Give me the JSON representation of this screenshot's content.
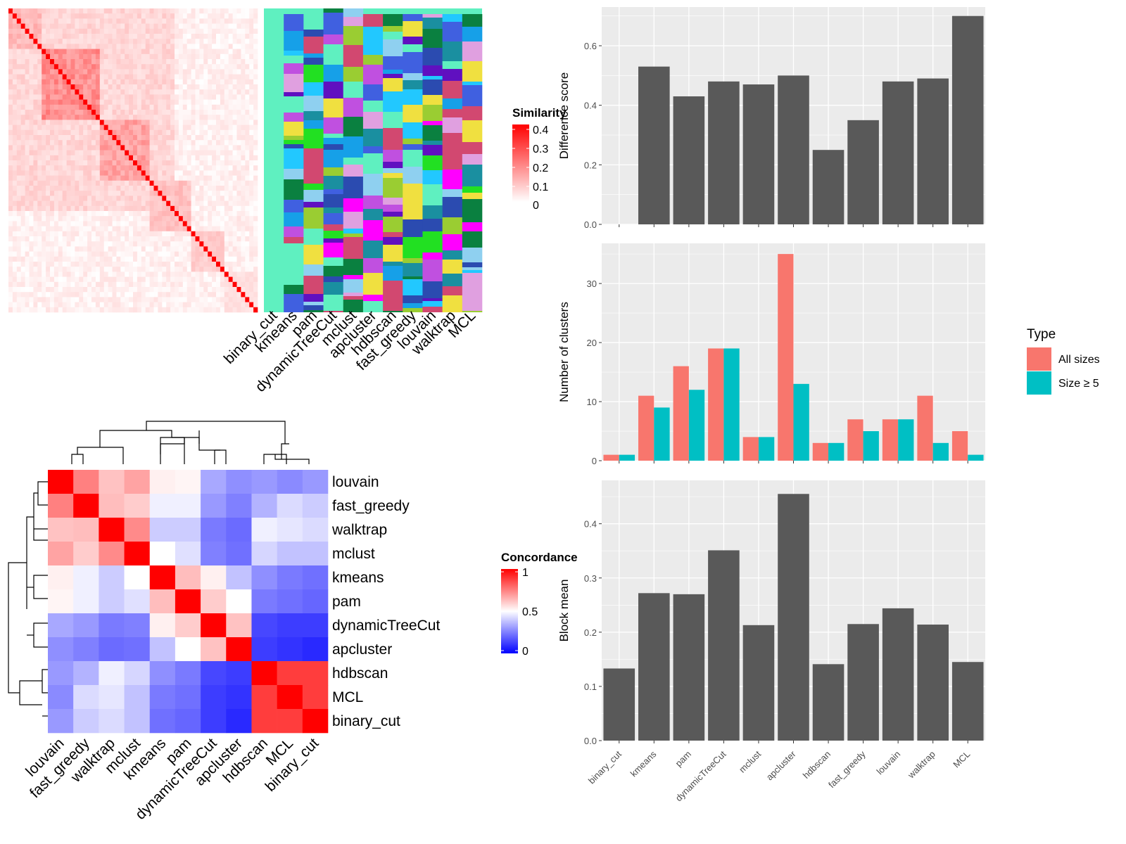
{
  "colors": {
    "panel_bg": "#ebebeb",
    "grid": "#ffffff",
    "bar": "#595959",
    "all_sizes": "#f8766d",
    "size_ge_5": "#00bfc4",
    "similarity_high": "#ff0000",
    "similarity_low": "#ffffff",
    "concordance_high": "#ff0000",
    "concordance_mid": "#ffffff",
    "concordance_low": "#0000ff"
  },
  "similarity_heatmap": {
    "legend_title": "Similarity",
    "legend_ticks": [
      "0.4",
      "0.3",
      "0.2",
      "0.1",
      "0"
    ],
    "method_labels": [
      "binary_cut",
      "kmeans",
      "pam",
      "dynamicTreeCut",
      "mclust",
      "apcluster",
      "hdbscan",
      "fast_greedy",
      "louvain",
      "walktrap",
      "MCL"
    ]
  },
  "concordance_heatmap": {
    "legend_title": "Concordance",
    "legend_ticks": [
      "1",
      "0.5",
      "0"
    ],
    "row_labels": [
      "louvain",
      "fast_greedy",
      "walktrap",
      "mclust",
      "kmeans",
      "pam",
      "dynamicTreeCut",
      "apcluster",
      "hdbscan",
      "MCL",
      "binary_cut"
    ],
    "col_labels": [
      "louvain",
      "fast_greedy",
      "walktrap",
      "mclust",
      "kmeans",
      "pam",
      "dynamicTreeCut",
      "apcluster",
      "hdbscan",
      "MCL",
      "binary_cut"
    ],
    "values": [
      [
        1.0,
        0.75,
        0.62,
        0.68,
        0.53,
        0.52,
        0.33,
        0.28,
        0.3,
        0.27,
        0.3
      ],
      [
        0.75,
        1.0,
        0.63,
        0.6,
        0.47,
        0.47,
        0.3,
        0.25,
        0.35,
        0.43,
        0.4
      ],
      [
        0.62,
        0.63,
        1.0,
        0.73,
        0.4,
        0.4,
        0.24,
        0.21,
        0.47,
        0.45,
        0.43
      ],
      [
        0.68,
        0.6,
        0.73,
        1.0,
        0.5,
        0.44,
        0.25,
        0.22,
        0.42,
        0.38,
        0.38
      ],
      [
        0.53,
        0.47,
        0.4,
        0.5,
        1.0,
        0.63,
        0.53,
        0.38,
        0.28,
        0.24,
        0.22
      ],
      [
        0.52,
        0.47,
        0.4,
        0.44,
        0.63,
        1.0,
        0.6,
        0.5,
        0.24,
        0.22,
        0.2
      ],
      [
        0.33,
        0.3,
        0.24,
        0.25,
        0.53,
        0.6,
        1.0,
        0.62,
        0.14,
        0.12,
        0.12
      ],
      [
        0.28,
        0.25,
        0.21,
        0.22,
        0.38,
        0.5,
        0.62,
        1.0,
        0.12,
        0.1,
        0.08
      ],
      [
        0.3,
        0.35,
        0.47,
        0.42,
        0.28,
        0.24,
        0.14,
        0.12,
        1.0,
        0.88,
        0.88
      ],
      [
        0.27,
        0.43,
        0.45,
        0.38,
        0.24,
        0.22,
        0.12,
        0.1,
        0.88,
        1.0,
        0.88
      ],
      [
        0.3,
        0.4,
        0.43,
        0.38,
        0.22,
        0.2,
        0.12,
        0.08,
        0.88,
        0.88,
        1.0
      ]
    ]
  },
  "chart_data": [
    {
      "type": "bar",
      "categories": [
        "binary_cut",
        "kmeans",
        "pam",
        "dynamicTreeCut",
        "mclust",
        "apcluster",
        "hdbscan",
        "fast_greedy",
        "louvain",
        "walktrap",
        "MCL"
      ],
      "values": [
        0.0,
        0.53,
        0.43,
        0.48,
        0.47,
        0.5,
        0.25,
        0.35,
        0.48,
        0.49,
        0.7
      ],
      "ylabel": "Difference score",
      "ylim": [
        0,
        0.73
      ],
      "yticks": [
        "0.0",
        "0.2",
        "0.4",
        "0.6"
      ]
    },
    {
      "type": "bar",
      "categories": [
        "binary_cut",
        "kmeans",
        "pam",
        "dynamicTreeCut",
        "mclust",
        "apcluster",
        "hdbscan",
        "fast_greedy",
        "louvain",
        "walktrap",
        "MCL"
      ],
      "series": [
        {
          "name": "All sizes",
          "values": [
            1,
            11,
            16,
            19,
            4,
            35,
            3,
            7,
            7,
            11,
            5
          ]
        },
        {
          "name": "Size ≥ 5",
          "values": [
            1,
            9,
            12,
            19,
            4,
            13,
            3,
            5,
            7,
            3,
            1
          ]
        }
      ],
      "ylabel": "Number of clusters",
      "ylim": [
        0,
        36.8
      ],
      "yticks": [
        "0",
        "10",
        "20",
        "30"
      ],
      "legend_title": "Type",
      "legend_placement": "right"
    },
    {
      "type": "bar",
      "categories": [
        "binary_cut",
        "kmeans",
        "pam",
        "dynamicTreeCut",
        "mclust",
        "apcluster",
        "hdbscan",
        "fast_greedy",
        "louvain",
        "walktrap",
        "MCL"
      ],
      "values": [
        0.133,
        0.272,
        0.27,
        0.351,
        0.213,
        0.455,
        0.141,
        0.215,
        0.244,
        0.214,
        0.145
      ],
      "ylabel": "Block mean",
      "ylim": [
        0,
        0.48
      ],
      "yticks": [
        "0.0",
        "0.1",
        "0.2",
        "0.3",
        "0.4"
      ]
    }
  ]
}
